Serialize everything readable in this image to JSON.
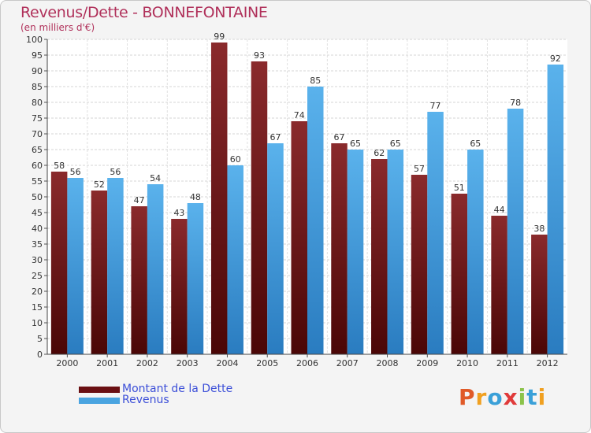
{
  "title": "Revenus/Dette - BONNEFONTAINE",
  "subtitle": "(en milliers d'€)",
  "colors": {
    "title": "#b0305a",
    "dette": "#7a1f22",
    "revenus": "#4aa4e0",
    "legend_text": "#3c4fd8"
  },
  "legend": [
    {
      "label": "Montant de la Dette",
      "color": "#6a0f12"
    },
    {
      "label": "Revenus",
      "color": "#4aa4e0"
    }
  ],
  "logo": {
    "letters": [
      "P",
      "r",
      "o",
      "x",
      "i",
      "t",
      "i"
    ],
    "colors": [
      "#e05a28",
      "#f0a020",
      "#3aa0d8",
      "#e03a3a",
      "#8bc34a",
      "#3aa0d8",
      "#f0a020"
    ]
  },
  "chart_data": {
    "type": "bar",
    "title": "Revenus/Dette - BONNEFONTAINE",
    "ylabel": "(en milliers d'€)",
    "xlabel": "",
    "ylim": [
      0,
      100
    ],
    "ytick_step": 5,
    "grid": true,
    "legend_position": "bottom-left",
    "categories": [
      "2000",
      "2001",
      "2002",
      "2003",
      "2004",
      "2005",
      "2006",
      "2007",
      "2008",
      "2009",
      "2010",
      "2011",
      "2012"
    ],
    "series": [
      {
        "name": "Montant de la Dette",
        "values": [
          58,
          52,
          47,
          43,
          99,
          93,
          74,
          67,
          62,
          57,
          51,
          44,
          38
        ]
      },
      {
        "name": "Revenus",
        "values": [
          56,
          56,
          54,
          48,
          60,
          67,
          85,
          65,
          65,
          77,
          65,
          78,
          92
        ]
      }
    ]
  }
}
